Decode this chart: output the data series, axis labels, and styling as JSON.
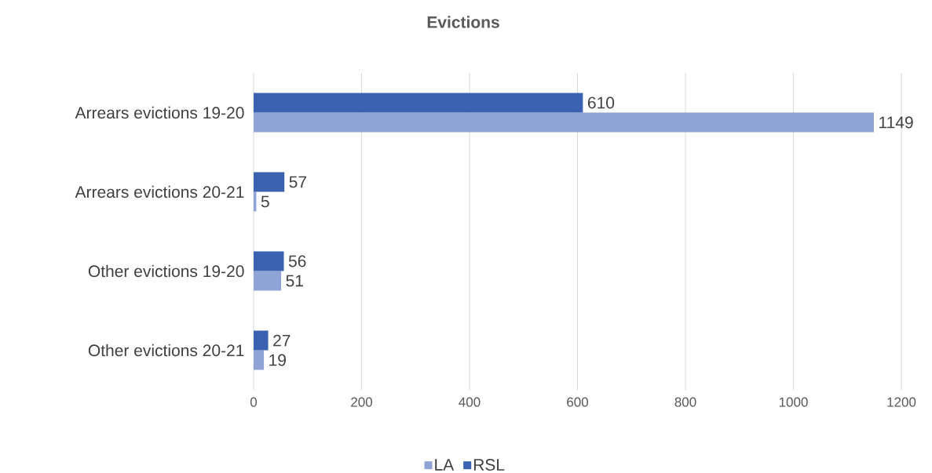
{
  "chart_data": {
    "type": "bar",
    "orientation": "horizontal",
    "title": "Evictions",
    "categories": [
      "Arrears evictions 19-20",
      "Arrears evictions 20-21",
      "Other evictions 19-20",
      "Other evictions 20-21"
    ],
    "series": [
      {
        "name": "LA",
        "color": "#8fa3d6",
        "values": [
          1149,
          5,
          51,
          19
        ]
      },
      {
        "name": "RSL",
        "color": "#3a62b0",
        "values": [
          610,
          57,
          56,
          27
        ]
      }
    ],
    "xlim": [
      0,
      1200
    ],
    "xticks": [
      0,
      200,
      400,
      600,
      800,
      1000,
      1200
    ],
    "grid": "x",
    "legend": "bottom",
    "data_labels": true
  }
}
